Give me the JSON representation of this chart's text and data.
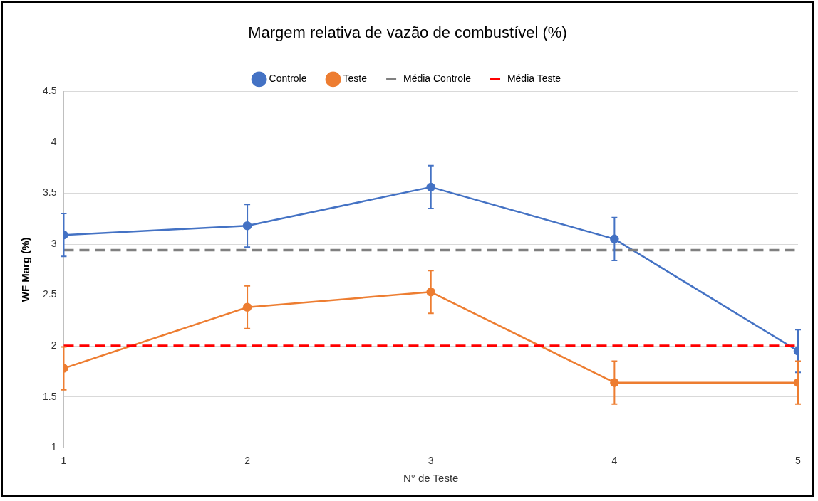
{
  "chart_data": {
    "type": "line",
    "title": "Margem relativa de vazão de combustível (%)",
    "xlabel": "N° de Teste",
    "ylabel": "WF Marg (%)",
    "x": [
      1,
      2,
      3,
      4,
      5
    ],
    "xlim": [
      1,
      5
    ],
    "xticks": [
      1,
      2,
      3,
      4,
      5
    ],
    "ylim": [
      1,
      4.5
    ],
    "yticks": [
      1,
      1.5,
      2,
      2.5,
      3,
      3.5,
      4,
      4.5
    ],
    "series": [
      {
        "name": "Controle",
        "color": "#4472c4",
        "values": [
          3.09,
          3.18,
          3.56,
          3.05,
          1.95
        ],
        "errors": [
          0.21,
          0.21,
          0.21,
          0.21,
          0.21
        ]
      },
      {
        "name": "Teste",
        "color": "#ed7d31",
        "values": [
          1.78,
          2.38,
          2.53,
          1.64,
          1.64
        ],
        "errors": [
          0.21,
          0.21,
          0.21,
          0.21,
          0.21
        ]
      }
    ],
    "ref_lines": [
      {
        "axis": "y",
        "value": 2.94,
        "label": "Média Controle",
        "color": "#808080",
        "line_style": "dashed"
      },
      {
        "axis": "y",
        "value": 2,
        "label": "Média Teste",
        "color": "#ff0000",
        "line_style": "dashed"
      }
    ],
    "grid": "y",
    "legend": "top",
    "marker": "circle",
    "line_style": "solid"
  }
}
